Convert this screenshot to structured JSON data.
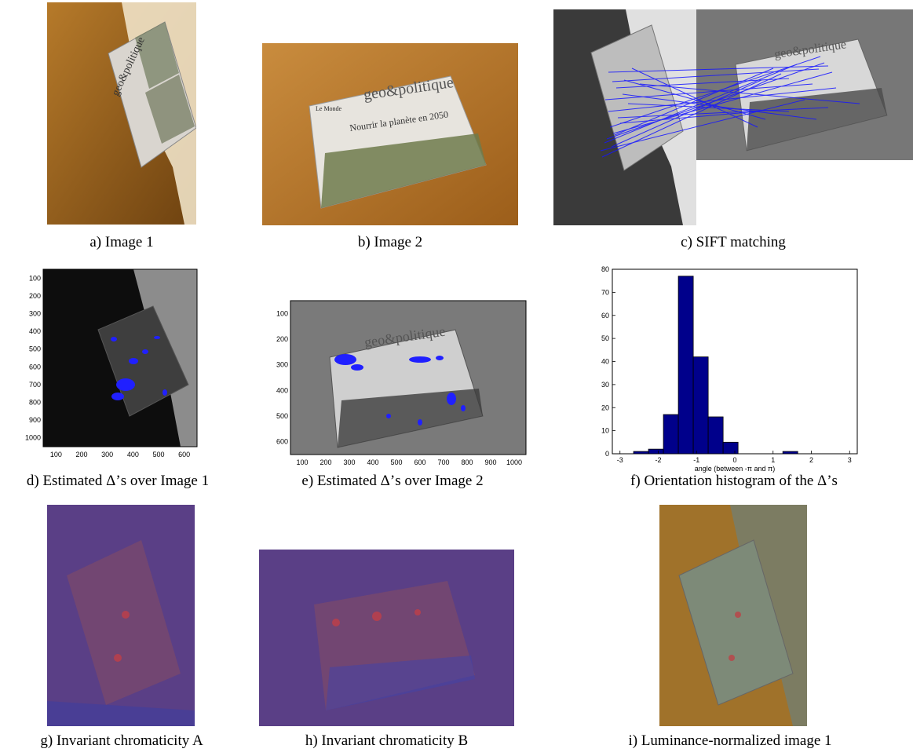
{
  "captions": {
    "a": "a) Image 1",
    "b": "b) Image 2",
    "c": "c) SIFT matching",
    "d": "d) Estimated Δ’s over Image 1",
    "e": "e) Estimated Δ’s over Image 2",
    "f": "f) Orientation histogram of the Δ’s",
    "g": "g) Invariant chromaticity A",
    "h": "h) Invariant chromaticity B",
    "i": "i) Luminance-normalized image 1"
  },
  "newspaper": {
    "masthead_small": "Le Monde",
    "masthead_big": "geo&politique",
    "headline": "Nourrir la planète en 2050"
  },
  "plot_d": {
    "yticks": [
      "100",
      "200",
      "300",
      "400",
      "500",
      "600",
      "700",
      "800",
      "900",
      "1000"
    ],
    "xticks": [
      "100",
      "200",
      "300",
      "400",
      "500",
      "600"
    ]
  },
  "plot_e": {
    "yticks": [
      "100",
      "200",
      "300",
      "400",
      "500",
      "600"
    ],
    "xticks": [
      "100",
      "200",
      "300",
      "400",
      "500",
      "600",
      "700",
      "800",
      "900",
      "1000"
    ]
  },
  "chart_data": {
    "type": "bar",
    "xlabel": "angle (between -π and π)",
    "ylabel": "",
    "xlim": [
      -3.2,
      3.2
    ],
    "ylim": [
      0,
      80
    ],
    "xticks": [
      -3,
      -2,
      -1,
      0,
      1,
      2,
      3
    ],
    "yticks": [
      0,
      10,
      20,
      30,
      40,
      50,
      60,
      70,
      80
    ],
    "bin_width": 0.39,
    "bins": [
      {
        "x": -2.45,
        "value": 1
      },
      {
        "x": -2.06,
        "value": 2
      },
      {
        "x": -1.67,
        "value": 17
      },
      {
        "x": -1.28,
        "value": 77
      },
      {
        "x": -0.89,
        "value": 42
      },
      {
        "x": -0.5,
        "value": 16
      },
      {
        "x": -0.11,
        "value": 5
      },
      {
        "x": 0.28,
        "value": 0
      },
      {
        "x": 0.67,
        "value": 0
      },
      {
        "x": 1.06,
        "value": 0
      },
      {
        "x": 1.45,
        "value": 1
      }
    ],
    "bar_color": "#00008b"
  }
}
